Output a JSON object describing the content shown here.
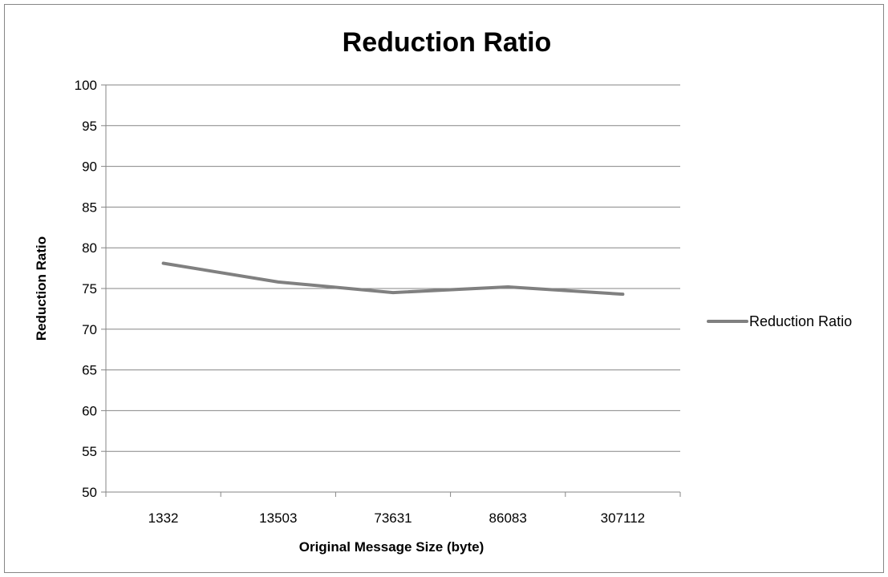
{
  "chart_data": {
    "type": "line",
    "title": "Reduction Ratio",
    "xlabel": "Original Message Size (byte)",
    "ylabel": "Reduction Ratio",
    "categories": [
      "1332",
      "13503",
      "73631",
      "86083",
      "307112"
    ],
    "series": [
      {
        "name": "Reduction Ratio",
        "values": [
          78.1,
          75.8,
          74.5,
          75.2,
          74.3
        ],
        "color": "#808080"
      }
    ],
    "ylim": [
      50,
      100
    ],
    "yticks": [
      50,
      55,
      60,
      65,
      70,
      75,
      80,
      85,
      90,
      95,
      100
    ],
    "grid": "horizontal",
    "legend": "right"
  }
}
